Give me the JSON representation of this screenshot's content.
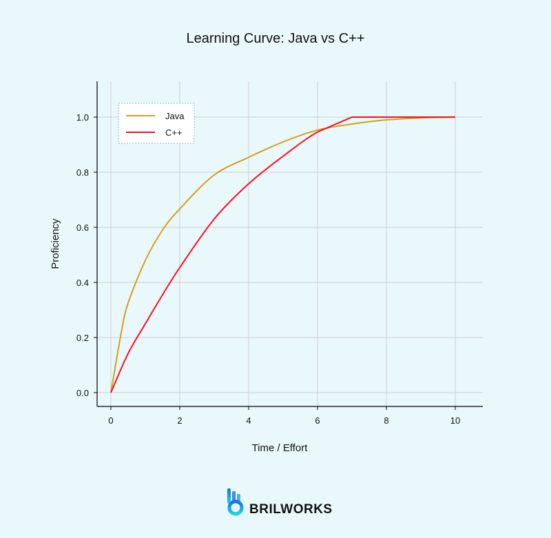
{
  "chart_data": {
    "type": "line",
    "title": "Learning Curve: Java vs C++",
    "xlabel": "Time / Effort",
    "ylabel": "Proficiency",
    "xlim": [
      -0.4,
      10.8
    ],
    "ylim": [
      -0.05,
      1.13
    ],
    "xticks": [
      0,
      2,
      4,
      6,
      8,
      10
    ],
    "yticks": [
      0.0,
      0.2,
      0.4,
      0.6,
      0.8,
      1.0
    ],
    "ytick_labels": [
      "0.0",
      "0.2",
      "0.4",
      "0.6",
      "0.8",
      "1.0"
    ],
    "grid": true,
    "legend": "top-left",
    "series": [
      {
        "name": "Java",
        "color": "#d4a017",
        "x": [
          0,
          0.3,
          0.5,
          1,
          1.5,
          2,
          3,
          4,
          5,
          6,
          7,
          8,
          9,
          10
        ],
        "y": [
          0,
          0.217,
          0.325,
          0.48,
          0.59,
          0.667,
          0.79,
          0.854,
          0.91,
          0.953,
          0.975,
          0.99,
          0.997,
          1.0
        ]
      },
      {
        "name": "C++",
        "color": "#ff0a1e",
        "x": [
          0,
          0.5,
          1,
          1.5,
          2,
          3,
          4,
          5,
          6,
          7,
          8,
          9,
          10
        ],
        "y": [
          0,
          0.142,
          0.25,
          0.355,
          0.454,
          0.63,
          0.758,
          0.858,
          0.946,
          1.0,
          1.0,
          1.0,
          1.0
        ]
      }
    ]
  },
  "brand": {
    "name": "BRILWORKS"
  }
}
